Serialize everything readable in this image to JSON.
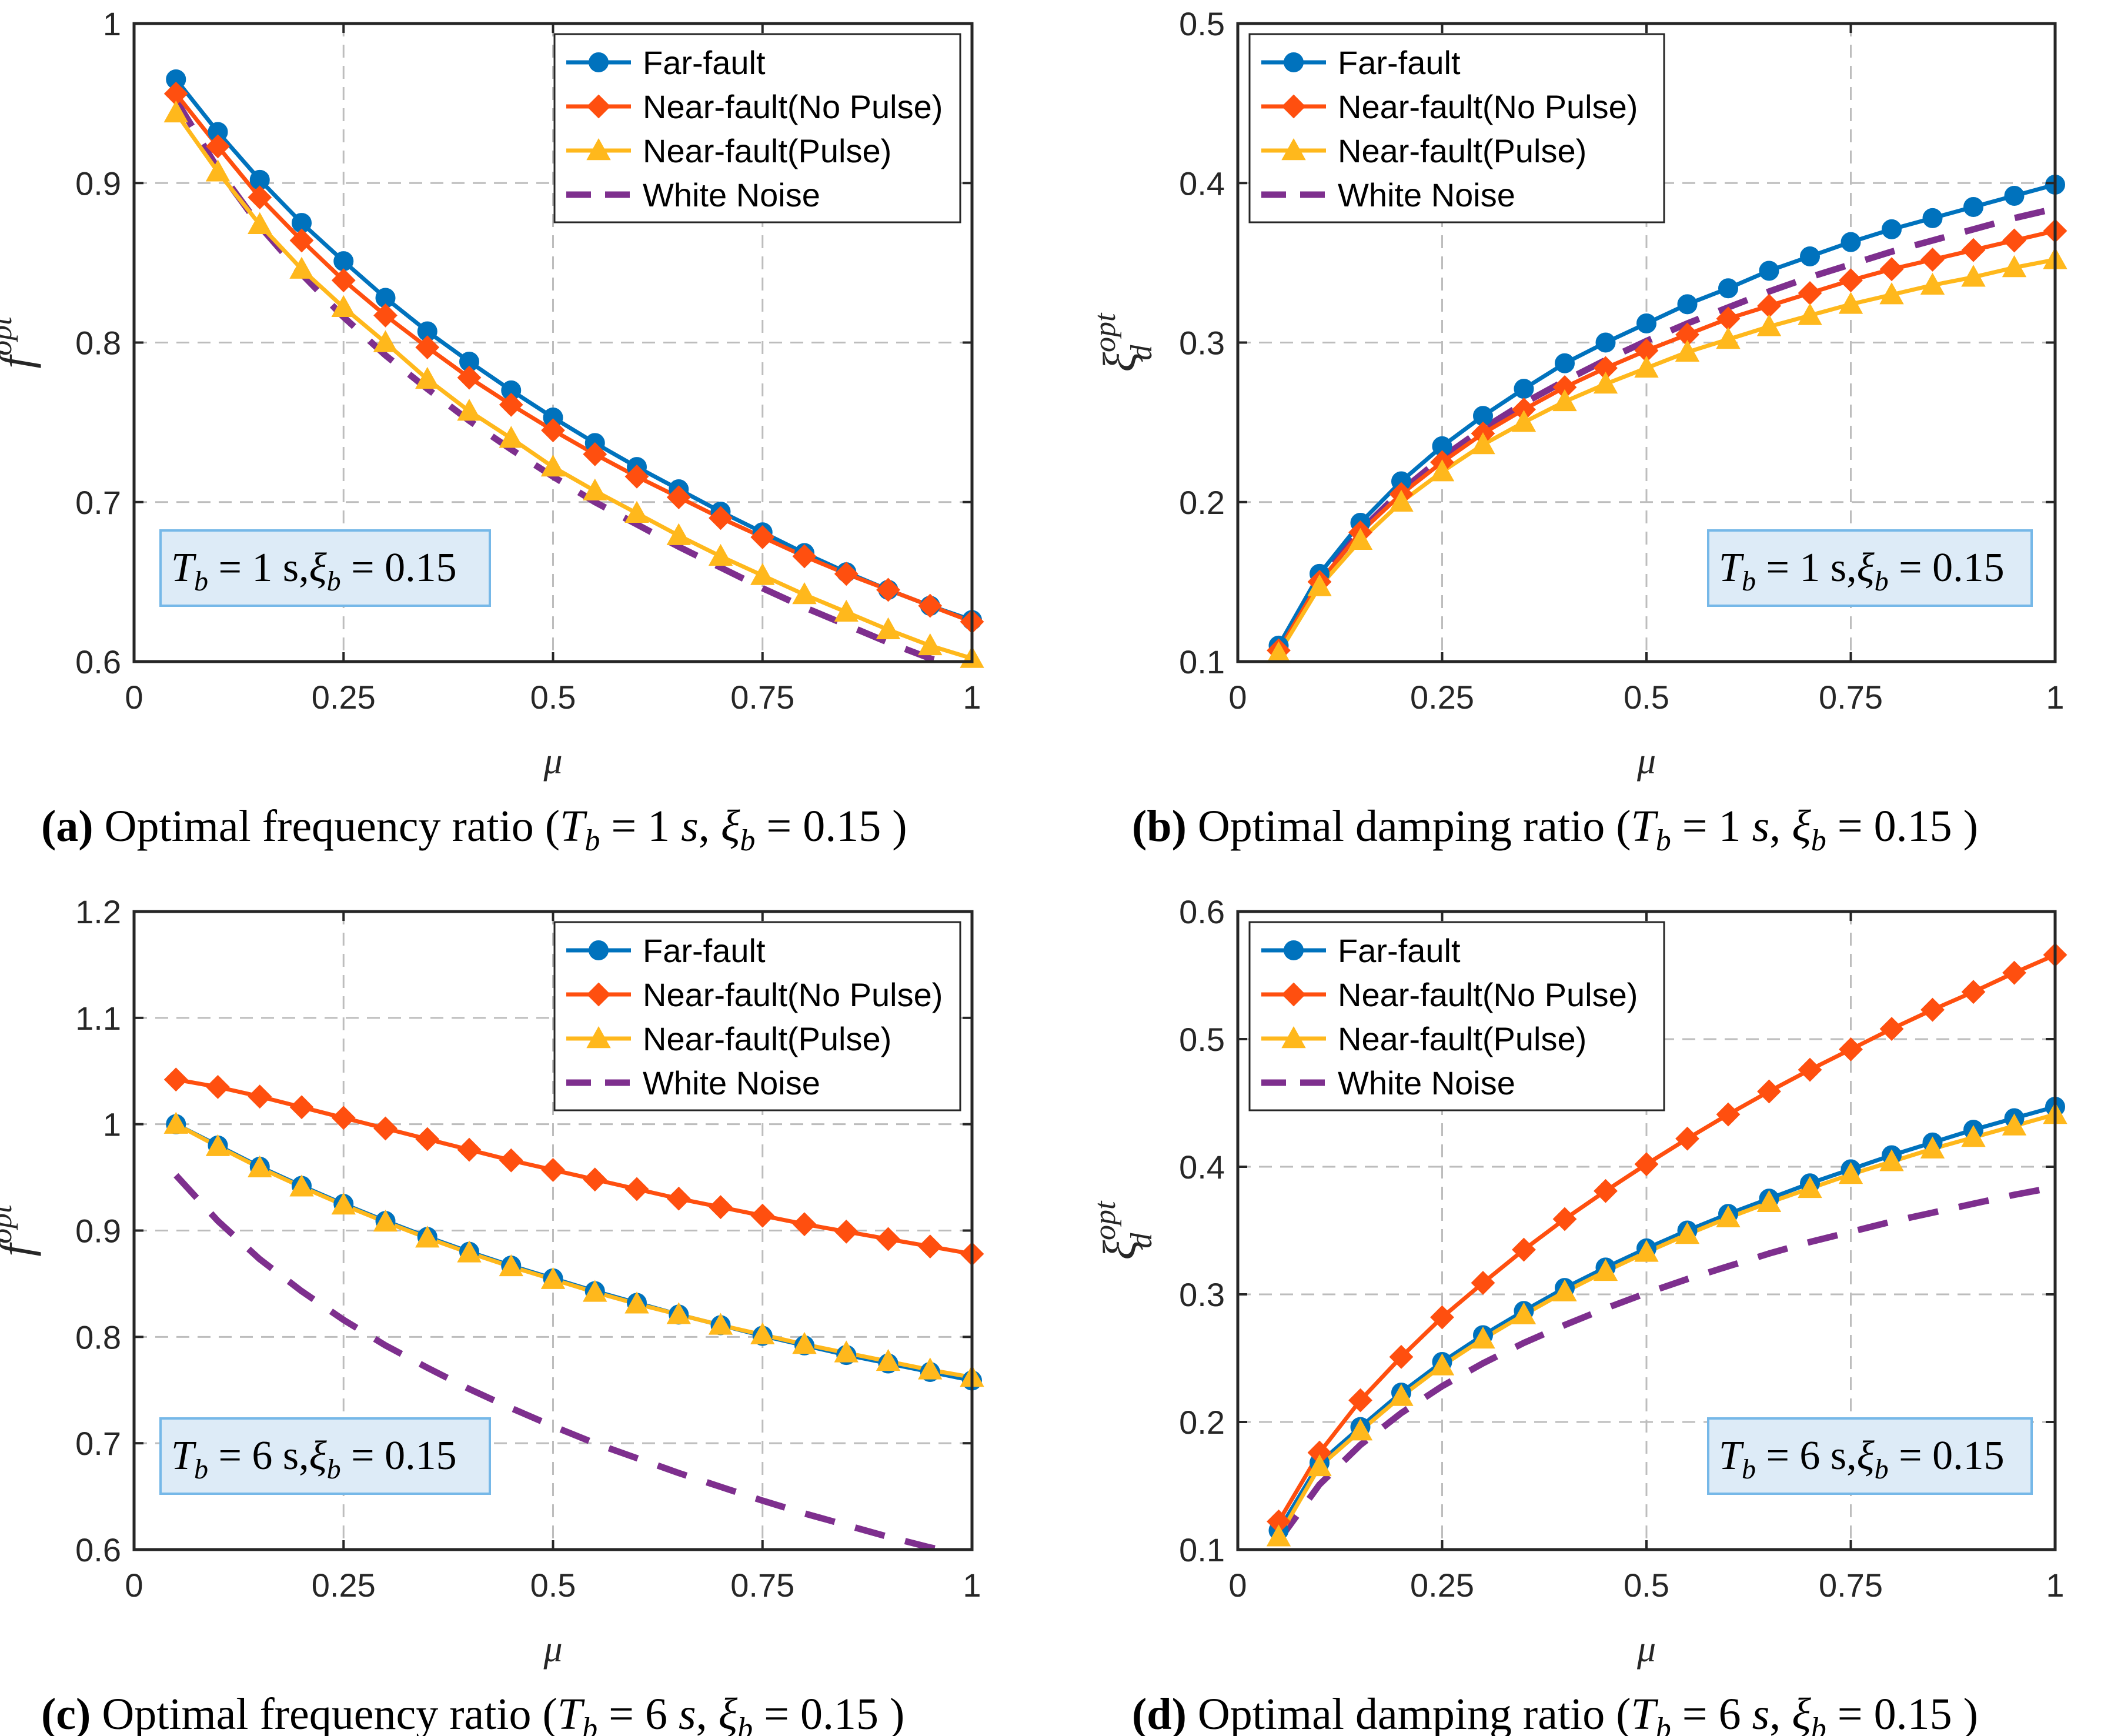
{
  "colors": {
    "far_fault": "#0072BD",
    "near_fault_no_pulse": "#FF4F0F",
    "near_fault_pulse": "#FFB81C",
    "white_noise": "#7E2F8E",
    "annotation_bg": "#DDEBF7",
    "annotation_border": "#76B8E8"
  },
  "chart_data": [
    {
      "id": "a",
      "type": "line",
      "ylabel_main": "f",
      "ylabel_sup": "opt",
      "xlabel": "μ",
      "xlim": [
        0,
        1
      ],
      "ylim": [
        0.6,
        1.0
      ],
      "xticks": [
        "0",
        "0.25",
        "0.5",
        "0.75",
        "1"
      ],
      "yticks": [
        "0.6",
        "0.7",
        "0.8",
        "0.9",
        "1"
      ],
      "grid": true,
      "legend_position": "top-right",
      "annotation": {
        "t_label": "T",
        "t_sub": "b",
        "t_val": " = 1 s,",
        "xi_label": "ξ",
        "xi_sub": "b",
        "xi_val": " = 0.15",
        "position": "bottom-left"
      },
      "caption": {
        "letter": "(a)",
        "text": " Optimal frequency ratio (",
        "t": "T",
        "t_sub": "b",
        "t_val": " = 1 ",
        "unit": "s",
        "sep": ",  ",
        "xi": "ξ",
        "xi_sub": "b",
        "xi_val": " = 0.15 )"
      },
      "x": [
        0.05,
        0.1,
        0.15,
        0.2,
        0.25,
        0.3,
        0.35,
        0.4,
        0.45,
        0.5,
        0.55,
        0.6,
        0.65,
        0.7,
        0.75,
        0.8,
        0.85,
        0.9,
        0.95,
        1.0
      ],
      "series": [
        {
          "name": "Far-fault",
          "marker": "circle",
          "values": [
            0.965,
            0.932,
            0.902,
            0.875,
            0.851,
            0.828,
            0.807,
            0.788,
            0.77,
            0.753,
            0.737,
            0.722,
            0.708,
            0.694,
            0.681,
            0.668,
            0.656,
            0.645,
            0.635,
            0.626
          ]
        },
        {
          "name": "Near-fault(No Pulse)",
          "marker": "diamond",
          "values": [
            0.956,
            0.923,
            0.891,
            0.864,
            0.839,
            0.817,
            0.797,
            0.778,
            0.761,
            0.745,
            0.73,
            0.716,
            0.703,
            0.69,
            0.678,
            0.666,
            0.655,
            0.645,
            0.635,
            0.625
          ]
        },
        {
          "name": "Near-fault(Pulse)",
          "marker": "triangle",
          "values": [
            0.944,
            0.907,
            0.874,
            0.846,
            0.822,
            0.8,
            0.777,
            0.757,
            0.74,
            0.722,
            0.707,
            0.693,
            0.679,
            0.666,
            0.654,
            0.642,
            0.631,
            0.62,
            0.61,
            0.602
          ]
        },
        {
          "name": "White Noise",
          "dashed": true,
          "values": [
            0.952,
            0.909,
            0.873,
            0.843,
            0.816,
            0.792,
            0.771,
            0.751,
            0.733,
            0.716,
            0.7,
            0.686,
            0.672,
            0.659,
            0.646,
            0.634,
            0.623,
            0.612,
            0.602,
            0.594
          ]
        }
      ]
    },
    {
      "id": "b",
      "type": "line",
      "ylabel_main": "ξ",
      "ylabel_sup": "opt",
      "ylabel_sub": "d",
      "xlabel": "μ",
      "xlim": [
        0,
        1
      ],
      "ylim": [
        0.1,
        0.5
      ],
      "xticks": [
        "0",
        "0.25",
        "0.5",
        "0.75",
        "1"
      ],
      "yticks": [
        "0.1",
        "0.2",
        "0.3",
        "0.4",
        "0.5"
      ],
      "grid": true,
      "legend_position": "top-left",
      "annotation": {
        "t_label": "T",
        "t_sub": "b",
        "t_val": " = 1 s,",
        "xi_label": "ξ",
        "xi_sub": "b",
        "xi_val": " = 0.15",
        "position": "bottom-right"
      },
      "caption": {
        "letter": "(b)",
        "text": " Optimal damping ratio (",
        "t": "T",
        "t_sub": "b",
        "t_val": " = 1 ",
        "unit": "s",
        "sep": ",  ",
        "xi": "ξ",
        "xi_sub": "b",
        "xi_val": " = 0.15 )"
      },
      "x": [
        0.05,
        0.1,
        0.15,
        0.2,
        0.25,
        0.3,
        0.35,
        0.4,
        0.45,
        0.5,
        0.55,
        0.6,
        0.65,
        0.7,
        0.75,
        0.8,
        0.85,
        0.9,
        0.95,
        1.0
      ],
      "series": [
        {
          "name": "Far-fault",
          "marker": "circle",
          "values": [
            0.11,
            0.155,
            0.187,
            0.213,
            0.235,
            0.254,
            0.271,
            0.287,
            0.3,
            0.312,
            0.324,
            0.334,
            0.345,
            0.354,
            0.363,
            0.371,
            0.378,
            0.385,
            0.392,
            0.399
          ]
        },
        {
          "name": "Near-fault(No Pulse)",
          "marker": "diamond",
          "values": [
            0.107,
            0.15,
            0.181,
            0.205,
            0.225,
            0.243,
            0.258,
            0.272,
            0.284,
            0.295,
            0.305,
            0.315,
            0.323,
            0.331,
            0.339,
            0.346,
            0.352,
            0.358,
            0.364,
            0.37
          ]
        },
        {
          "name": "Near-fault(Pulse)",
          "marker": "triangle",
          "values": [
            0.105,
            0.147,
            0.176,
            0.2,
            0.219,
            0.236,
            0.25,
            0.263,
            0.274,
            0.284,
            0.294,
            0.302,
            0.31,
            0.317,
            0.324,
            0.33,
            0.336,
            0.341,
            0.347,
            0.352
          ]
        },
        {
          "name": "White Noise",
          "dashed": true,
          "values": [
            0.107,
            0.151,
            0.182,
            0.207,
            0.228,
            0.246,
            0.262,
            0.276,
            0.289,
            0.301,
            0.312,
            0.322,
            0.332,
            0.341,
            0.349,
            0.357,
            0.364,
            0.371,
            0.378,
            0.384
          ]
        }
      ]
    },
    {
      "id": "c",
      "type": "line",
      "ylabel_main": "f",
      "ylabel_sup": "opt",
      "xlabel": "μ",
      "xlim": [
        0,
        1
      ],
      "ylim": [
        0.6,
        1.2
      ],
      "xticks": [
        "0",
        "0.25",
        "0.5",
        "0.75",
        "1"
      ],
      "yticks": [
        "0.6",
        "0.7",
        "0.8",
        "0.9",
        "1",
        "1.1",
        "1.2"
      ],
      "grid": true,
      "legend_position": "top-right",
      "annotation": {
        "t_label": "T",
        "t_sub": "b",
        "t_val": " = 6 s,",
        "xi_label": "ξ",
        "xi_sub": "b",
        "xi_val": " = 0.15",
        "position": "bottom-left"
      },
      "caption": {
        "letter": "(c)",
        "text": " Optimal frequency ratio (",
        "t": "T",
        "t_sub": "b",
        "t_val": " = 6 ",
        "unit": "s",
        "sep": ",  ",
        "xi": "ξ",
        "xi_sub": "b",
        "xi_val": " = 0.15 )"
      },
      "x": [
        0.05,
        0.1,
        0.15,
        0.2,
        0.25,
        0.3,
        0.35,
        0.4,
        0.45,
        0.5,
        0.55,
        0.6,
        0.65,
        0.7,
        0.75,
        0.8,
        0.85,
        0.9,
        0.95,
        1.0
      ],
      "series": [
        {
          "name": "Far-fault",
          "marker": "circle",
          "values": [
            1.0,
            0.98,
            0.96,
            0.942,
            0.925,
            0.909,
            0.894,
            0.88,
            0.867,
            0.855,
            0.843,
            0.832,
            0.821,
            0.811,
            0.801,
            0.792,
            0.783,
            0.775,
            0.767,
            0.759
          ]
        },
        {
          "name": "Near-fault(No Pulse)",
          "marker": "diamond",
          "values": [
            1.042,
            1.035,
            1.026,
            1.016,
            1.006,
            0.996,
            0.986,
            0.976,
            0.966,
            0.957,
            0.948,
            0.939,
            0.93,
            0.922,
            0.914,
            0.906,
            0.899,
            0.892,
            0.885,
            0.878
          ]
        },
        {
          "name": "Near-fault(Pulse)",
          "marker": "triangle",
          "values": [
            1.0,
            0.979,
            0.959,
            0.941,
            0.924,
            0.908,
            0.893,
            0.879,
            0.866,
            0.854,
            0.842,
            0.831,
            0.821,
            0.811,
            0.802,
            0.793,
            0.785,
            0.777,
            0.769,
            0.762
          ]
        },
        {
          "name": "White Noise",
          "dashed": true,
          "values": [
            0.952,
            0.909,
            0.873,
            0.843,
            0.816,
            0.792,
            0.771,
            0.751,
            0.733,
            0.716,
            0.7,
            0.686,
            0.672,
            0.659,
            0.646,
            0.634,
            0.623,
            0.612,
            0.602,
            0.594
          ]
        }
      ]
    },
    {
      "id": "d",
      "type": "line",
      "ylabel_main": "ξ",
      "ylabel_sup": "opt",
      "ylabel_sub": "d",
      "xlabel": "μ",
      "xlim": [
        0,
        1
      ],
      "ylim": [
        0.1,
        0.6
      ],
      "xticks": [
        "0",
        "0.25",
        "0.5",
        "0.75",
        "1"
      ],
      "yticks": [
        "0.1",
        "0.2",
        "0.3",
        "0.4",
        "0.5",
        "0.6"
      ],
      "grid": true,
      "legend_position": "top-left",
      "annotation": {
        "t_label": "T",
        "t_sub": "b",
        "t_val": " = 6 s,",
        "xi_label": "ξ",
        "xi_sub": "b",
        "xi_val": " = 0.15",
        "position": "bottom-right"
      },
      "caption": {
        "letter": "(d)",
        "text": " Optimal damping ratio (",
        "t": "T",
        "t_sub": "b",
        "t_val": " = 6 ",
        "unit": "s",
        "sep": ",  ",
        "xi": "ξ",
        "xi_sub": "b",
        "xi_val": " = 0.15 )"
      },
      "x": [
        0.05,
        0.1,
        0.15,
        0.2,
        0.25,
        0.3,
        0.35,
        0.4,
        0.45,
        0.5,
        0.55,
        0.6,
        0.65,
        0.7,
        0.75,
        0.8,
        0.85,
        0.9,
        0.95,
        1.0
      ],
      "series": [
        {
          "name": "Far-fault",
          "marker": "circle",
          "values": [
            0.115,
            0.168,
            0.196,
            0.223,
            0.247,
            0.268,
            0.287,
            0.305,
            0.321,
            0.336,
            0.35,
            0.363,
            0.375,
            0.387,
            0.398,
            0.409,
            0.419,
            0.429,
            0.438,
            0.447
          ]
        },
        {
          "name": "Near-fault(No Pulse)",
          "marker": "diamond",
          "values": [
            0.122,
            0.176,
            0.217,
            0.251,
            0.282,
            0.309,
            0.335,
            0.359,
            0.381,
            0.402,
            0.422,
            0.441,
            0.459,
            0.476,
            0.492,
            0.508,
            0.523,
            0.537,
            0.552,
            0.566
          ]
        },
        {
          "name": "Near-fault(Pulse)",
          "marker": "triangle",
          "values": [
            0.11,
            0.165,
            0.193,
            0.22,
            0.244,
            0.265,
            0.284,
            0.302,
            0.318,
            0.333,
            0.347,
            0.36,
            0.372,
            0.383,
            0.394,
            0.404,
            0.414,
            0.423,
            0.432,
            0.441
          ]
        },
        {
          "name": "White Noise",
          "dashed": true,
          "values": [
            0.107,
            0.151,
            0.182,
            0.207,
            0.228,
            0.246,
            0.262,
            0.276,
            0.289,
            0.301,
            0.312,
            0.322,
            0.332,
            0.341,
            0.349,
            0.357,
            0.364,
            0.371,
            0.378,
            0.384
          ]
        }
      ]
    }
  ]
}
